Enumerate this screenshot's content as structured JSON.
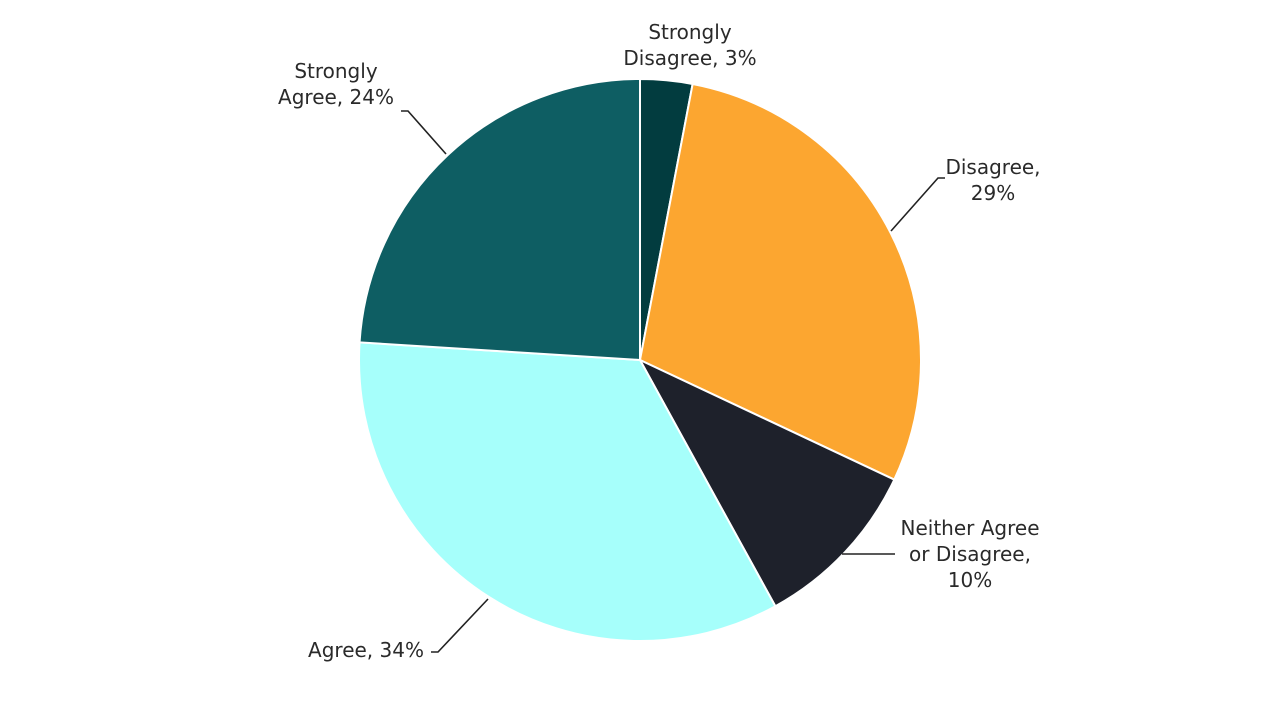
{
  "chart_data": {
    "type": "pie",
    "title": "",
    "slices": [
      {
        "label": "Strongly Disagree",
        "value": 3,
        "color": "#023c3f",
        "text_lines": [
          "Strongly",
          "Disagree, 3%"
        ]
      },
      {
        "label": "Disagree",
        "value": 29,
        "color": "#fca630",
        "text_lines": [
          "Disagree,",
          "29%"
        ]
      },
      {
        "label": "Neither Agree or Disagree",
        "value": 10,
        "color": "#1e212b",
        "text_lines": [
          "Neither Agree",
          "or Disagree,",
          "10%"
        ]
      },
      {
        "label": "Agree",
        "value": 34,
        "color": "#a6fffb",
        "text_lines": [
          "Agree, 34%"
        ]
      },
      {
        "label": "Strongly Agree",
        "value": 24,
        "color": "#0e5e63",
        "text_lines": [
          "Strongly",
          "Agree, 24%"
        ]
      }
    ],
    "legend": "none"
  }
}
